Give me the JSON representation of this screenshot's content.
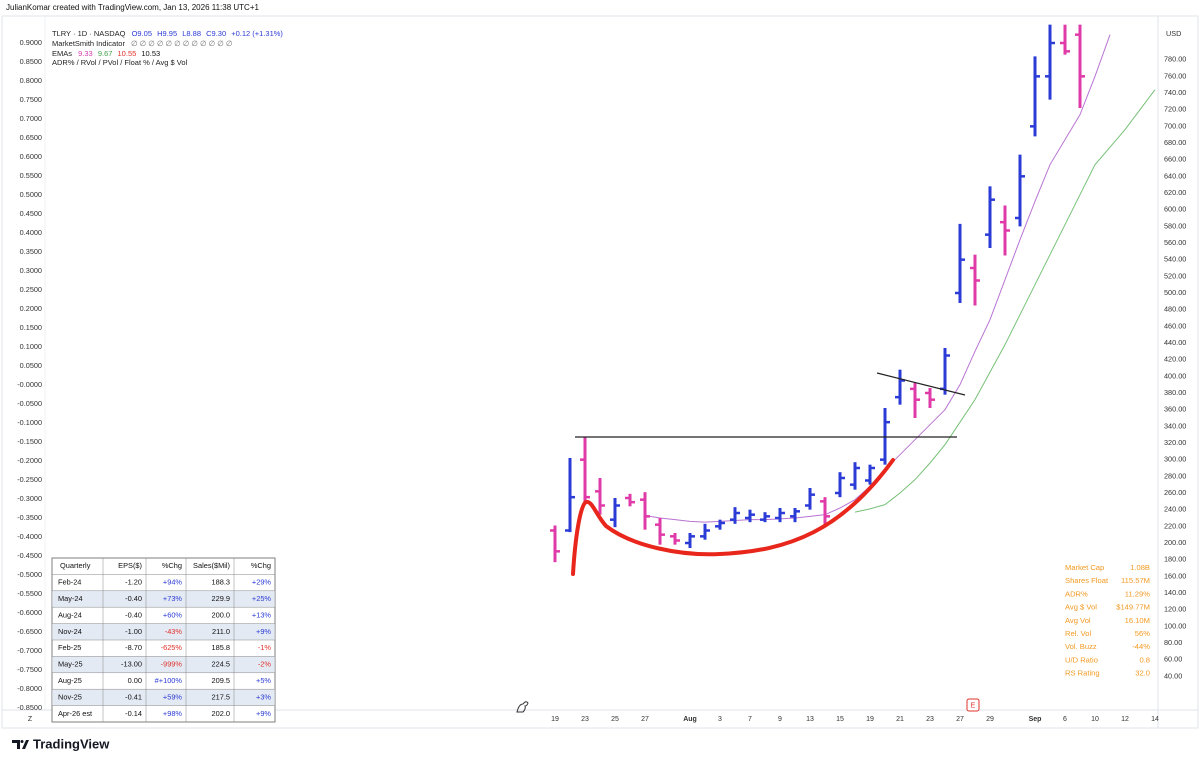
{
  "header": {
    "credit": "JulianKomar created with TradingView.com, Jan 13, 2026 11:38 UTC+1",
    "symbol": "TLRY · 1D · NASDAQ",
    "ohlc_readout": [
      "O9.05",
      "H9.95",
      "L8.88",
      "C9.30",
      "+0.12 (+1.31%)"
    ],
    "indicator": "MarketSmith Indicator",
    "indicator_values": "∅ ∅ ∅ ∅ ∅ ∅ ∅ ∅ ∅ ∅ ∅ ∅",
    "ema_label": "EMAs",
    "ema_values": [
      "9.33",
      "9.67",
      "10.55",
      "10.53"
    ],
    "adr_label": "ADR% / RVol / PVol / Float % / Avg $ Vol"
  },
  "chart_data": {
    "type": "ohlc",
    "categories": [
      "19",
      null,
      "23",
      null,
      "25",
      null,
      "27",
      null,
      null,
      "Aug",
      null,
      "3",
      null,
      "7",
      null,
      "9",
      null,
      "13",
      null,
      "15",
      null,
      "19",
      null,
      "21",
      null,
      "23",
      null,
      "27",
      null,
      "29",
      null,
      null,
      "Sep",
      null,
      "6",
      null,
      "10",
      null,
      "12",
      null,
      "14"
    ],
    "bold_categories": [
      "Aug",
      "Sep"
    ],
    "open": [
      215,
      215,
      300,
      262,
      228,
      254,
      252,
      222,
      208,
      200,
      208,
      220,
      228,
      230,
      228,
      230,
      232,
      245,
      250,
      260,
      270,
      275,
      300,
      375,
      385,
      380,
      385,
      500,
      530,
      570,
      585,
      590,
      700,
      760,
      800,
      810,
      null,
      null,
      null,
      null,
      null
    ],
    "high": [
      221,
      302,
      327,
      278,
      254,
      259,
      261,
      230,
      212,
      212,
      223,
      228,
      243,
      240,
      237,
      242,
      242,
      266,
      255,
      285,
      297,
      294,
      362,
      408,
      392,
      386,
      434,
      583,
      546,
      628,
      605,
      666,
      784,
      822,
      822,
      822,
      null,
      null,
      null,
      null,
      null
    ],
    "low": [
      177,
      213,
      246,
      234,
      219,
      244,
      216,
      198,
      198,
      194,
      204,
      216,
      223,
      225,
      225,
      225,
      225,
      240,
      219,
      255,
      264,
      270,
      294,
      366,
      350,
      362,
      378,
      488,
      485,
      554,
      545,
      580,
      688,
      732,
      786,
      722,
      null,
      null,
      null,
      null,
      null
    ],
    "close": [
      190,
      255,
      255,
      245,
      245,
      249,
      232,
      210,
      203,
      208,
      215,
      224,
      236,
      234,
      232,
      236,
      238,
      258,
      232,
      278,
      290,
      290,
      345,
      395,
      372,
      372,
      425,
      540,
      515,
      612,
      575,
      640,
      760,
      800,
      790,
      760,
      null,
      null,
      null,
      null,
      null
    ],
    "up_color": "#2b3bd6",
    "down_color": "#e03aa8",
    "ema_series": [
      {
        "color": "#b974d2",
        "values": [
          null,
          null,
          null,
          null,
          null,
          null,
          233,
          230,
          228,
          226,
          225,
          226,
          227,
          228,
          228,
          229,
          230,
          232,
          234,
          242,
          252,
          268,
          288,
          306,
          324,
          342,
          360,
          390,
          430,
          468,
          516,
          564,
          610,
          654,
          684,
          714,
          760,
          810,
          null,
          null,
          null
        ]
      },
      {
        "color": "#77c077",
        "values": [
          null,
          null,
          null,
          null,
          null,
          null,
          null,
          null,
          null,
          null,
          null,
          null,
          null,
          null,
          null,
          null,
          null,
          null,
          null,
          null,
          237,
          241,
          246,
          260,
          276,
          296,
          318,
          345,
          372,
          405,
          438,
          474,
          510,
          546,
          582,
          618,
          654,
          675,
          696,
          720,
          744
        ]
      }
    ],
    "y_unit": "USD",
    "ylim": [
      2,
      830
    ],
    "yticks": [
      {
        "value": 780,
        "label": "780.00"
      },
      {
        "value": 760,
        "label": "760.00"
      },
      {
        "value": 740,
        "label": "740.00"
      },
      {
        "value": 720,
        "label": "720.00"
      },
      {
        "value": 700,
        "label": "700.00"
      },
      {
        "value": 680,
        "label": "680.00"
      },
      {
        "value": 660,
        "label": "660.00"
      },
      {
        "value": 640,
        "label": "640.00"
      },
      {
        "value": 620,
        "label": "620.00"
      },
      {
        "value": 600,
        "label": "600.00"
      },
      {
        "value": 580,
        "label": "580.00"
      },
      {
        "value": 560,
        "label": "560.00"
      },
      {
        "value": 540,
        "label": "540.00"
      },
      {
        "value": 520,
        "label": "520.00"
      },
      {
        "value": 500,
        "label": "500.00"
      },
      {
        "value": 480,
        "label": "480.00"
      },
      {
        "value": 460,
        "label": "460.00"
      },
      {
        "value": 440,
        "label": "440.00"
      },
      {
        "value": 420,
        "label": "420.00"
      },
      {
        "value": 400,
        "label": "400.00"
      },
      {
        "value": 380,
        "label": "380.00"
      },
      {
        "value": 360,
        "label": "360.00"
      },
      {
        "value": 340,
        "label": "340.00"
      },
      {
        "value": 320,
        "label": "320.00"
      },
      {
        "value": 300,
        "label": "300.00"
      },
      {
        "value": 280,
        "label": "280.00"
      },
      {
        "value": 260,
        "label": "260.00"
      },
      {
        "value": 240,
        "label": "240.00"
      },
      {
        "value": 220,
        "label": "220.00"
      },
      {
        "value": 200,
        "label": "200.00"
      },
      {
        "value": 180,
        "label": "180.00"
      },
      {
        "value": 160,
        "label": "160.00"
      },
      {
        "value": 140,
        "label": "140.00"
      },
      {
        "value": 120,
        "label": "120.00"
      },
      {
        "value": 100,
        "label": "100.00"
      },
      {
        "value": 80,
        "label": "80.00"
      },
      {
        "value": 60,
        "label": "60.00"
      },
      {
        "value": 40,
        "label": "40.00"
      }
    ],
    "y2lim": [
      -0.85,
      0.9658
    ],
    "y2ticks": [
      {
        "value": 0.9,
        "label": "0.9000"
      },
      {
        "value": 0.85,
        "label": "0.8500"
      },
      {
        "value": 0.8,
        "label": "0.8000"
      },
      {
        "value": 0.75,
        "label": "0.7500"
      },
      {
        "value": 0.7,
        "label": "0.7000"
      },
      {
        "value": 0.65,
        "label": "0.6500"
      },
      {
        "value": 0.6,
        "label": "0.6000"
      },
      {
        "value": 0.55,
        "label": "0.5500"
      },
      {
        "value": 0.5,
        "label": "0.5000"
      },
      {
        "value": 0.45,
        "label": "0.4500"
      },
      {
        "value": 0.4,
        "label": "0.4000"
      },
      {
        "value": 0.35,
        "label": "0.3500"
      },
      {
        "value": 0.3,
        "label": "0.3000"
      },
      {
        "value": 0.25,
        "label": "0.2500"
      },
      {
        "value": 0.2,
        "label": "0.2000"
      },
      {
        "value": 0.15,
        "label": "0.1500"
      },
      {
        "value": 0.1,
        "label": "0.1000"
      },
      {
        "value": 0.05,
        "label": "0.0500"
      },
      {
        "value": 0,
        "label": "-0.0000"
      },
      {
        "value": -0.05,
        "label": "-0.0500"
      },
      {
        "value": -0.1,
        "label": "-0.1000"
      },
      {
        "value": -0.15,
        "label": "-0.1500"
      },
      {
        "value": -0.2,
        "label": "-0.2000"
      },
      {
        "value": -0.25,
        "label": "-0.2500"
      },
      {
        "value": -0.3,
        "label": "-0.3000"
      },
      {
        "value": -0.35,
        "label": "-0.3500"
      },
      {
        "value": -0.4,
        "label": "-0.4000"
      },
      {
        "value": -0.45,
        "label": "-0.4500"
      },
      {
        "value": -0.5,
        "label": "-0.5000"
      },
      {
        "value": -0.55,
        "label": "-0.5500"
      },
      {
        "value": -0.6,
        "label": "-0.6000"
      },
      {
        "value": -0.65,
        "label": "-0.6500"
      },
      {
        "value": -0.7,
        "label": "-0.7000"
      },
      {
        "value": -0.75,
        "label": "-0.7500"
      },
      {
        "value": -0.8,
        "label": "-0.8000"
      },
      {
        "value": -0.85,
        "label": "-0.8500"
      }
    ],
    "grid": false
  },
  "time_zone_button": "Z",
  "earnings_marker": "E",
  "quarterly_table": {
    "header": [
      "Quarterly",
      "EPS($)",
      "%Chg",
      "Sales($Mil)",
      "%Chg"
    ],
    "rows": [
      [
        "Feb-24",
        "-1.20",
        "+94%",
        "188.3",
        "+29%"
      ],
      [
        "May-24",
        "-0.40",
        "+73%",
        "229.9",
        "+25%"
      ],
      [
        "Aug-24",
        "-0.40",
        "+60%",
        "200.0",
        "+13%"
      ],
      [
        "Nov-24",
        "-1.00",
        "-43%",
        "211.0",
        "+9%"
      ],
      [
        "Feb-25",
        "-8.70",
        "-625%",
        "185.8",
        "-1%"
      ],
      [
        "May-25",
        "-13.00",
        "-999%",
        "224.5",
        "-2%"
      ],
      [
        "Aug-25",
        "0.00",
        "#+100%",
        "209.5",
        "+5%"
      ],
      [
        "Nov-25",
        "-0.41",
        "+59%",
        "217.5",
        "+3%"
      ],
      [
        "Apr-26 est",
        "-0.14",
        "+98%",
        "202.0",
        "+9%"
      ]
    ]
  },
  "stats": [
    {
      "label": "Market Cap",
      "value": "1.08B"
    },
    {
      "label": "Shares Float",
      "value": "115.57M"
    },
    {
      "label": "ADR%",
      "value": "11.29%"
    },
    {
      "label": "Avg $ Vol",
      "value": "$149.77M"
    },
    {
      "label": "Avg Vol",
      "value": "16.10M"
    },
    {
      "label": "Rel. Vol",
      "value": "56%"
    },
    {
      "label": "Vol. Buzz",
      "value": "-44%"
    },
    {
      "label": "U/D Ratio",
      "value": "0.8"
    },
    {
      "label": "RS Rating",
      "value": "32.0"
    }
  ],
  "logo": "TradingView"
}
